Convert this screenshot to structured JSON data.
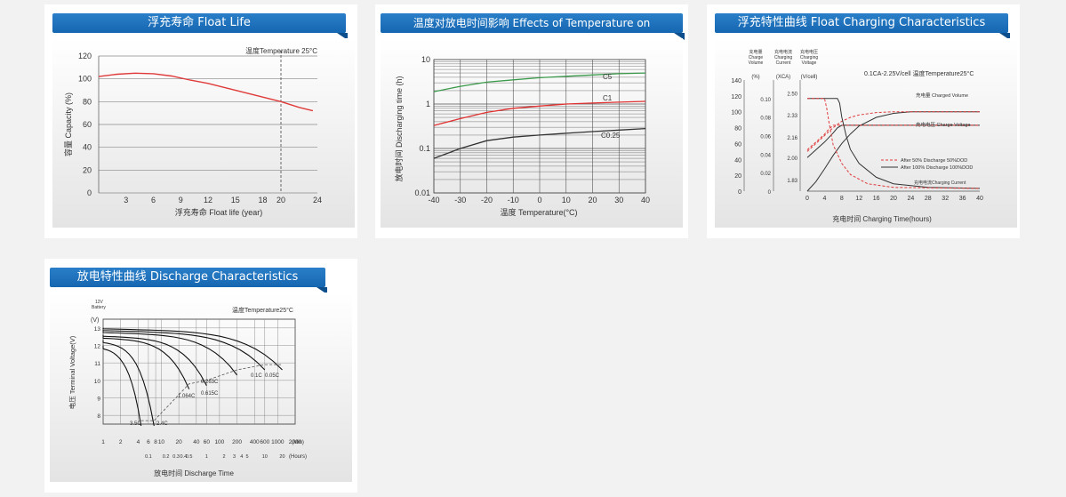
{
  "float_life": {
    "title": "浮充寿命 Float Life",
    "ylabel": "容量 Capacity (%)",
    "xlabel": "浮充寿命  Float life (year)",
    "annotation": "温度Temperature 25°C",
    "chart_data": {
      "type": "line",
      "yticks": [
        "0",
        "20",
        "40",
        "60",
        "80",
        "100",
        "120"
      ],
      "xticks": [
        "3",
        "6",
        "9",
        "12",
        "15",
        "18",
        "20",
        "24"
      ],
      "xlim": [
        0,
        24
      ],
      "ylim": [
        0,
        120
      ],
      "x": [
        0,
        2,
        4,
        6,
        8,
        10,
        12,
        14,
        16,
        18,
        20,
        22,
        23.5
      ],
      "values": [
        102,
        104,
        105,
        104.5,
        102.5,
        99,
        96,
        92,
        88,
        84,
        80,
        75,
        72
      ]
    }
  },
  "temp_effect": {
    "title": "温度对放电时间影响 Effects of Temperature on Discharging Time",
    "ylabel": "放电时间 Discharging time (h)",
    "xlabel": "温度  Temperature(°C)",
    "chart_data": {
      "type": "line",
      "yscale": "log",
      "yticks": [
        "0.01",
        "0.1",
        "1",
        "10"
      ],
      "xticks": [
        "-40",
        "-30",
        "-20",
        "-10",
        "0",
        "10",
        "20",
        "30",
        "40"
      ],
      "xlim": [
        -40,
        40
      ],
      "ylim": [
        0.01,
        10
      ],
      "x": [
        -40,
        -30,
        -20,
        -10,
        0,
        10,
        20,
        30,
        40
      ],
      "series": [
        {
          "name": "C5",
          "values": [
            1.9,
            2.5,
            3.1,
            3.5,
            3.9,
            4.2,
            4.5,
            4.8,
            5.0
          ],
          "color": "#3a9a4a"
        },
        {
          "name": "C1",
          "values": [
            0.33,
            0.47,
            0.65,
            0.8,
            0.9,
            1.0,
            1.05,
            1.1,
            1.15
          ],
          "color": "#e03030"
        },
        {
          "name": "C0.25",
          "values": [
            0.06,
            0.1,
            0.15,
            0.18,
            0.2,
            0.22,
            0.24,
            0.26,
            0.28
          ],
          "color": "#333333"
        }
      ],
      "labels": {
        "C5": "C5",
        "C1": "C1",
        "C025": "C0.25"
      }
    }
  },
  "float_charge": {
    "title": "浮充特性曲线 Float Charging Characteristics",
    "xlabel": "充电时间 Charging Time(hours)",
    "condition": "0.1CA-2.25V/cell  温度Temperature25°C",
    "col_headers": [
      {
        "cn": "充电量",
        "en1": "Charge",
        "en2": "Volume",
        "unit": "(%)"
      },
      {
        "cn": "充电电流",
        "en1": "Charging",
        "en2": "Current",
        "unit": "(XCA)"
      },
      {
        "cn": "充电电压",
        "en1": "Charging",
        "en2": "Voltage",
        "unit": "(V/cell)"
      }
    ],
    "labels": {
      "volume": "充电量 Charged Volume",
      "voltage": "充电电压 Charge Voltage",
      "current": "充电电流Charging Current",
      "dod50": "After 50% Discharge 50%DOD",
      "dod100": "After 100% Discharge 100%DOD"
    },
    "chart_data": {
      "type": "line",
      "xticks": [
        "0",
        "4",
        "8",
        "12",
        "16",
        "20",
        "24",
        "28",
        "32",
        "36",
        "40"
      ],
      "volume_ticks": [
        "0",
        "20",
        "40",
        "60",
        "80",
        "100",
        "120",
        "140"
      ],
      "current_ticks": [
        "0",
        "0.02",
        "0.04",
        "0.06",
        "0.08",
        "0.10"
      ],
      "voltage_ticks": [
        "1.83",
        "2.00",
        "2.16",
        "2.33",
        "2.50"
      ],
      "xlim": [
        0,
        40
      ],
      "series": [
        {
          "name": "Charged Volume 100%DOD",
          "x": [
            0,
            2,
            4,
            6,
            8,
            10,
            12,
            16,
            20,
            24,
            28,
            32,
            40
          ],
          "values": [
            0,
            12,
            28,
            45,
            60,
            72,
            82,
            93,
            98,
            100,
            100,
            100,
            100
          ]
        },
        {
          "name": "Charged Volume 50%DOD",
          "x": [
            0,
            2,
            4,
            6,
            8,
            10,
            12,
            16,
            20,
            28,
            40
          ],
          "values": [
            50,
            60,
            70,
            80,
            88,
            93,
            96,
            99,
            100,
            100,
            100
          ]
        },
        {
          "name": "Charge Voltage 100%DOD",
          "x": [
            0,
            2,
            4,
            6,
            7,
            8,
            10,
            40
          ],
          "values": [
            2.0,
            2.06,
            2.12,
            2.19,
            2.23,
            2.25,
            2.25,
            2.25
          ]
        },
        {
          "name": "Charge Voltage 50%DOD",
          "x": [
            0,
            2,
            4,
            5,
            6,
            40
          ],
          "values": [
            2.06,
            2.12,
            2.18,
            2.22,
            2.25,
            2.25
          ]
        },
        {
          "name": "Charging Current 100%DOD",
          "x": [
            0,
            7,
            7.5,
            8,
            9,
            10,
            12,
            16,
            20,
            28,
            40
          ],
          "values": [
            0.1,
            0.1,
            0.095,
            0.08,
            0.06,
            0.045,
            0.03,
            0.015,
            0.008,
            0.004,
            0.003
          ]
        },
        {
          "name": "Charging Current 50%DOD",
          "x": [
            0,
            4,
            4.5,
            5,
            6,
            8,
            10,
            14,
            20,
            40
          ],
          "values": [
            0.1,
            0.1,
            0.09,
            0.075,
            0.05,
            0.03,
            0.018,
            0.008,
            0.004,
            0.003
          ]
        }
      ]
    }
  },
  "discharge": {
    "title": "放电特性曲线 Discharge Characteristics",
    "battery": [
      "12V",
      "Battery"
    ],
    "yunit": "(V)",
    "ylabel": "电压 Terminal Voltage(V)",
    "annotation": "温度Temperature25°C",
    "xlabel": "放电时间  Discharge Time",
    "chart_data": {
      "type": "line",
      "yticks": [
        "8",
        "9",
        "10",
        "11",
        "12",
        "13"
      ],
      "ylim": [
        7.5,
        13.5
      ],
      "min_ticks": [
        "1",
        "2",
        "4",
        "6",
        "8",
        "10",
        "20",
        "40",
        "60",
        "100",
        "200",
        "400",
        "600",
        "1000",
        "2000"
      ],
      "min_unit": "(Min)",
      "hour_ticks": [
        "0.1",
        "0.2",
        "0.3",
        "0.4",
        "0.5",
        "1",
        "2",
        "3",
        "4",
        "5",
        "10",
        "20"
      ],
      "hour_unit": "(Hours)",
      "rates": [
        "3.5C",
        "2.4C",
        "1.064C",
        "0.615C",
        "0.263C",
        "0.1C",
        "0.05C"
      ],
      "series": [
        {
          "name": "3.5C",
          "end_min": 4.5,
          "start_v": 12.0,
          "end_v": 7.7
        },
        {
          "name": "2.4C",
          "end_min": 7.5,
          "start_v": 12.3,
          "end_v": 7.7
        },
        {
          "name": "1.064C",
          "end_min": 30,
          "start_v": 12.5,
          "end_v": 9.8
        },
        {
          "name": "0.615C",
          "end_min": 60,
          "start_v": 12.6,
          "end_v": 10.0
        },
        {
          "name": "0.263C",
          "end_min": 200,
          "start_v": 12.8,
          "end_v": 10.6
        },
        {
          "name": "0.1C",
          "end_min": 600,
          "start_v": 12.9,
          "end_v": 10.9
        },
        {
          "name": "0.05C",
          "end_min": 1200,
          "start_v": 13.0,
          "end_v": 10.9
        }
      ]
    }
  }
}
